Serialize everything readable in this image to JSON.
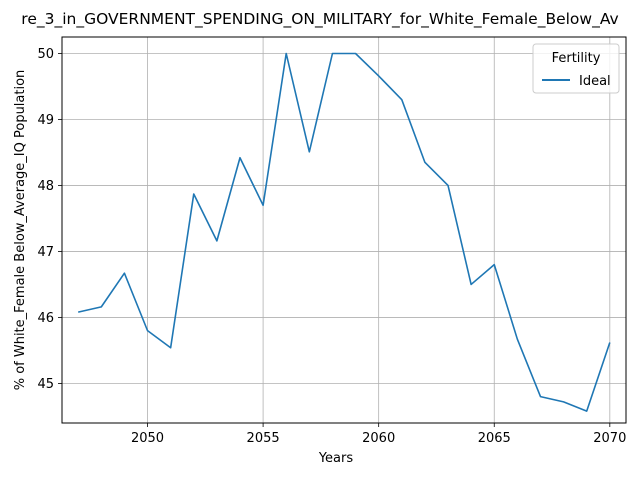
{
  "chart_data": {
    "type": "line",
    "title": "re_3_in_GOVERNMENT_SPENDING_ON_MILITARY_for_White_Female_Below_Av",
    "xlabel": "Years",
    "ylabel": "% of White_Female Below_Average_IQ Population",
    "xlim": [
      2046.3,
      2070.7
    ],
    "ylim": [
      44.4,
      50.25
    ],
    "xticks": [
      2050,
      2055,
      2060,
      2065,
      2070
    ],
    "yticks": [
      45,
      46,
      47,
      48,
      49,
      50
    ],
    "grid": true,
    "legend": {
      "title": "Fertility",
      "placement": "top-right"
    },
    "series": [
      {
        "name": "Ideal",
        "color": "#1f77b4",
        "x": [
          2047,
          2048,
          2049,
          2050,
          2051,
          2052,
          2053,
          2054,
          2055,
          2056,
          2057,
          2058,
          2059,
          2060,
          2061,
          2062,
          2063,
          2064,
          2065,
          2066,
          2067,
          2068,
          2069,
          2070
        ],
        "y": [
          46.08,
          46.16,
          46.67,
          45.8,
          45.54,
          47.87,
          47.16,
          48.42,
          47.7,
          50.0,
          48.51,
          50.0,
          50.0,
          49.66,
          49.3,
          48.35,
          48.0,
          46.5,
          46.8,
          45.67,
          44.8,
          44.72,
          44.58,
          45.62
        ]
      }
    ]
  }
}
